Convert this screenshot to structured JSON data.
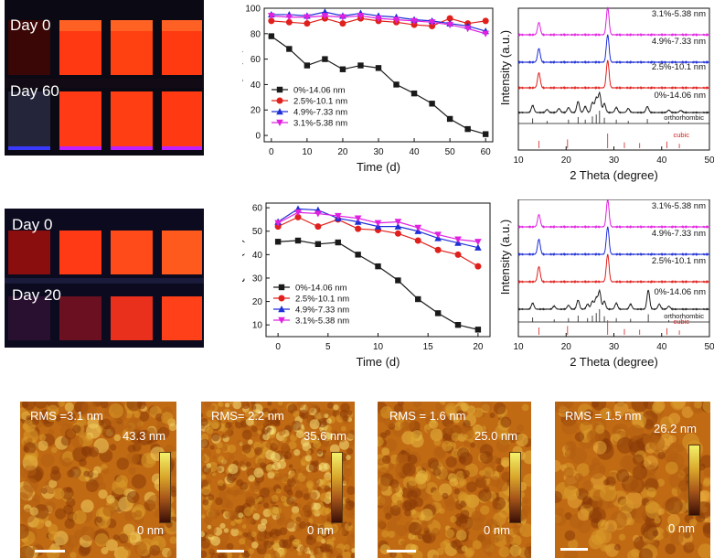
{
  "photos": [
    {
      "labels": [
        "Day 0",
        "Day 60"
      ]
    },
    {
      "labels": [
        "Day 0",
        "Day 20"
      ]
    }
  ],
  "afm": [
    {
      "rms": "RMS =3.1 nm",
      "max": "43.3 nm",
      "min": "0 nm"
    },
    {
      "rms": "RMS= 2.2 nm",
      "max": "35.6 nm",
      "min": "0 nm"
    },
    {
      "rms": "RMS = 1.6 nm",
      "max": "25.0 nm",
      "min": "0 nm"
    },
    {
      "rms": "RMS = 1.5 nm",
      "max": "26.2 nm",
      "min": "0 nm"
    }
  ],
  "colors": {
    "black": "#1a1a1a",
    "red": "#e0201c",
    "blue": "#1f2fd6",
    "magenta": "#e020e0",
    "cubic_ref": "#d22020"
  },
  "chart_data": [
    {
      "type": "line",
      "xlabel": "Time (d)",
      "ylabel": "PLQY (%)",
      "xlim": [
        -2,
        62
      ],
      "ylim": [
        -5,
        100
      ],
      "xticks": [
        0,
        10,
        20,
        30,
        40,
        50,
        60
      ],
      "yticks": [
        0,
        20,
        40,
        60,
        80,
        100
      ],
      "legend_position": "bottom-left",
      "series": [
        {
          "name": "0%-14.06 nm",
          "marker": "square",
          "color": "#1a1a1a",
          "x": [
            0,
            5,
            10,
            15,
            20,
            25,
            30,
            35,
            40,
            45,
            50,
            55,
            60
          ],
          "y": [
            78,
            68,
            55,
            60,
            52,
            55,
            53,
            40,
            33,
            25,
            13,
            5,
            1
          ]
        },
        {
          "name": "2.5%-10.1 nm",
          "marker": "circle",
          "color": "#e0201c",
          "x": [
            0,
            5,
            10,
            15,
            20,
            25,
            30,
            35,
            40,
            45,
            50,
            55,
            60
          ],
          "y": [
            90,
            89,
            88,
            92,
            88,
            92,
            90,
            89,
            87,
            86,
            92,
            88,
            90
          ]
        },
        {
          "name": "4.9%-7.33 nm",
          "marker": "triangle",
          "color": "#1f2fd6",
          "x": [
            0,
            5,
            10,
            15,
            20,
            25,
            30,
            35,
            40,
            45,
            50,
            55,
            60
          ],
          "y": [
            95,
            95,
            94,
            97,
            94,
            96,
            94,
            93,
            91,
            90,
            88,
            86,
            82
          ]
        },
        {
          "name": "3.1%-5.38 nm",
          "marker": "triangle-down",
          "color": "#e020e0",
          "x": [
            0,
            5,
            10,
            15,
            20,
            25,
            30,
            35,
            40,
            45,
            50,
            55,
            60
          ],
          "y": [
            94,
            93,
            93,
            94,
            93,
            94,
            92,
            91,
            90,
            89,
            87,
            84,
            80
          ]
        }
      ]
    },
    {
      "type": "line",
      "xlabel": "2 Theta (degree)",
      "ylabel": "Intensity (a.u.)",
      "xlim": [
        10,
        50
      ],
      "xticks": [
        10,
        20,
        30,
        40,
        50
      ],
      "series": [
        {
          "name": "3.1%-5.38 nm",
          "color": "#e020e0",
          "peaks": [
            14.3,
            28.7
          ],
          "heights": [
            0.45,
            1.0
          ]
        },
        {
          "name": "4.9%-7.33 nm",
          "color": "#1f2fd6",
          "peaks": [
            14.3,
            28.7
          ],
          "heights": [
            0.5,
            1.0
          ]
        },
        {
          "name": "2.5%-10.1 nm",
          "color": "#e0201c",
          "peaks": [
            14.3,
            28.7
          ],
          "heights": [
            0.55,
            1.0
          ]
        },
        {
          "name": "0%-14.06 nm",
          "color": "#1a1a1a",
          "peaks": [
            13.0,
            16.0,
            18.5,
            20.5,
            22.5,
            24.0,
            25.5,
            26.3,
            27.0,
            28.0,
            30.5,
            33.0,
            37.0,
            41.5,
            44.0
          ],
          "heights": [
            0.35,
            0.15,
            0.2,
            0.25,
            0.55,
            0.3,
            0.5,
            0.7,
            0.95,
            0.45,
            0.25,
            0.2,
            0.3,
            0.12,
            0.1
          ]
        }
      ],
      "references": [
        {
          "name": "orthorhombic",
          "color": "#1a1a1a",
          "x": [
            13.0,
            16.0,
            20.5,
            22.5,
            24.0,
            25.5,
            26.3,
            27.0,
            28.0,
            30.5,
            33.0,
            37.0,
            41.5
          ],
          "h": [
            0.4,
            0.2,
            0.3,
            0.5,
            0.3,
            0.55,
            0.7,
            1.0,
            0.45,
            0.3,
            0.2,
            0.35,
            0.15
          ]
        },
        {
          "name": "cubic",
          "color": "#d22020",
          "x": [
            14.3,
            20.3,
            28.7,
            32.2,
            35.4,
            41.1,
            43.7
          ],
          "h": [
            0.5,
            0.6,
            1.0,
            0.4,
            0.35,
            0.45,
            0.3
          ]
        }
      ]
    },
    {
      "type": "line",
      "xlabel": "Time (d)",
      "ylabel": "PLQY　(%)",
      "xlim": [
        -1.2,
        21.2
      ],
      "ylim": [
        5,
        62
      ],
      "xticks": [
        0,
        5,
        10,
        15,
        20
      ],
      "yticks": [
        10,
        20,
        30,
        40,
        50,
        60
      ],
      "legend_position": "bottom-left",
      "series": [
        {
          "name": "0%-14.06 nm",
          "marker": "square",
          "color": "#1a1a1a",
          "x": [
            0,
            2,
            4,
            6,
            8,
            10,
            12,
            14,
            16,
            18,
            20
          ],
          "y": [
            45.5,
            46,
            44.5,
            45.2,
            40,
            35,
            29,
            21,
            15,
            10,
            8
          ]
        },
        {
          "name": "2.5%-10.1 nm",
          "marker": "circle",
          "color": "#e0201c",
          "x": [
            0,
            2,
            4,
            6,
            8,
            10,
            12,
            14,
            16,
            18,
            20
          ],
          "y": [
            52,
            56,
            52,
            55,
            51,
            50.5,
            49,
            46,
            42,
            40,
            35
          ]
        },
        {
          "name": "4.9%-7.33 nm",
          "marker": "triangle",
          "color": "#1f2fd6",
          "x": [
            0,
            2,
            4,
            6,
            8,
            10,
            12,
            14,
            16,
            18,
            20
          ],
          "y": [
            54,
            59.5,
            59,
            55.5,
            54,
            52,
            52,
            50,
            47,
            45,
            43
          ]
        },
        {
          "name": "3.1%-5.38 nm",
          "marker": "triangle-down",
          "color": "#e020e0",
          "x": [
            0,
            2,
            4,
            6,
            8,
            10,
            12,
            14,
            16,
            18,
            20
          ],
          "y": [
            53.5,
            58,
            57.5,
            56.5,
            55.5,
            53.5,
            54,
            51.5,
            48.5,
            46.5,
            45.5
          ]
        }
      ]
    },
    {
      "type": "line",
      "xlabel": "2 Theta (degree)",
      "ylabel": "Intensity (a.u.)",
      "xlim": [
        10,
        50
      ],
      "xticks": [
        10,
        20,
        30,
        40,
        50
      ],
      "series": [
        {
          "name": "3.1%-5.38 nm",
          "color": "#e020e0",
          "peaks": [
            14.3,
            28.7
          ],
          "heights": [
            0.45,
            1.0
          ]
        },
        {
          "name": "4.9%-7.33 nm",
          "color": "#1f2fd6",
          "peaks": [
            14.3,
            28.7
          ],
          "heights": [
            0.55,
            1.0
          ]
        },
        {
          "name": "2.5%-10.1 nm",
          "color": "#e0201c",
          "peaks": [
            14.3,
            28.7
          ],
          "heights": [
            0.55,
            1.0
          ]
        },
        {
          "name": "0%-14.06 nm",
          "color": "#1a1a1a",
          "peaks": [
            13.0,
            17.5,
            20.5,
            22.5,
            24.5,
            25.5,
            26.3,
            27.0,
            28.0,
            30.5,
            33.5,
            37.2,
            39.5,
            41.5
          ],
          "heights": [
            0.3,
            0.15,
            0.2,
            0.45,
            0.25,
            0.4,
            0.55,
            0.9,
            0.4,
            0.3,
            0.25,
            0.95,
            0.25,
            0.15
          ]
        }
      ],
      "references": [
        {
          "name": "orthorhombic",
          "color": "#1a1a1a",
          "x": [
            13.0,
            17.5,
            20.5,
            22.5,
            24.5,
            25.5,
            26.3,
            27.0,
            28.0,
            30.5,
            33.5,
            37.2,
            41.5
          ],
          "h": [
            0.35,
            0.2,
            0.3,
            0.5,
            0.3,
            0.5,
            0.7,
            1.0,
            0.45,
            0.3,
            0.25,
            0.6,
            0.15
          ]
        },
        {
          "name": "cubic",
          "color": "#d22020",
          "x": [
            14.3,
            20.3,
            28.7,
            32.2,
            35.4,
            41.1,
            43.7
          ],
          "h": [
            0.5,
            0.6,
            1.0,
            0.4,
            0.35,
            0.45,
            0.3
          ]
        }
      ]
    }
  ]
}
